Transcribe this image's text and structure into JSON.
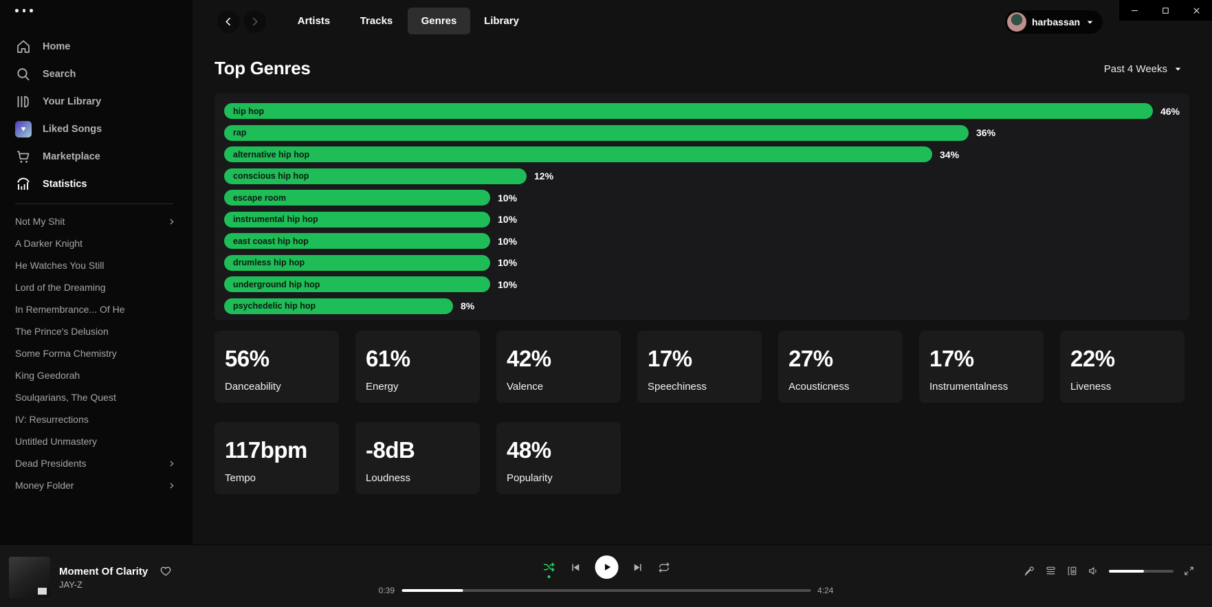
{
  "colors": {
    "accent": "#1ed760",
    "bar_green": "#1ebd57"
  },
  "sidebar": {
    "nav": [
      {
        "label": "Home",
        "icon": "home",
        "active": false
      },
      {
        "label": "Search",
        "icon": "search",
        "active": false
      },
      {
        "label": "Your Library",
        "icon": "library",
        "active": false
      },
      {
        "label": "Liked Songs",
        "icon": "liked",
        "active": false
      },
      {
        "label": "Marketplace",
        "icon": "cart",
        "active": false
      },
      {
        "label": "Statistics",
        "icon": "stats",
        "active": true
      }
    ],
    "playlists": [
      {
        "label": "Not My Shit",
        "folder": true
      },
      {
        "label": "A Darker Knight",
        "folder": false
      },
      {
        "label": "He Watches You Still",
        "folder": false
      },
      {
        "label": "Lord of the Dreaming",
        "folder": false
      },
      {
        "label": "In Remembrance... Of He",
        "folder": false
      },
      {
        "label": "The Prince's Delusion",
        "folder": false
      },
      {
        "label": "Some Forma Chemistry",
        "folder": false
      },
      {
        "label": "King Geedorah",
        "folder": false
      },
      {
        "label": "Soulqarians, The Quest",
        "folder": false
      },
      {
        "label": "IV: Resurrections",
        "folder": false
      },
      {
        "label": "Untitled Unmastery",
        "folder": false
      },
      {
        "label": "Dead Presidents",
        "folder": true
      },
      {
        "label": "Money Folder",
        "folder": true
      }
    ]
  },
  "topbar": {
    "tabs": [
      {
        "label": "Artists",
        "active": false
      },
      {
        "label": "Tracks",
        "active": false
      },
      {
        "label": "Genres",
        "active": true
      },
      {
        "label": "Library",
        "active": false
      }
    ],
    "user_name": "harbassan"
  },
  "header": {
    "title": "Top Genres",
    "time_range": "Past 4 Weeks"
  },
  "chart_data": {
    "type": "bar",
    "orientation": "horizontal",
    "title": "Top Genres",
    "categories": [
      "hip hop",
      "rap",
      "alternative hip hop",
      "conscious hip hop",
      "escape room",
      "instrumental hip hop",
      "east coast hip hop",
      "drumless hip hop",
      "underground hip hop",
      "psychedelic hip hop"
    ],
    "values": [
      46,
      36,
      34,
      12,
      10,
      10,
      10,
      10,
      10,
      8
    ],
    "value_labels": [
      "46%",
      "36%",
      "34%",
      "12%",
      "10%",
      "10%",
      "10%",
      "10%",
      "10%",
      "8%"
    ],
    "unit": "%",
    "bar_color": "#1ebd57",
    "grid": false,
    "legend": false
  },
  "stats": [
    {
      "value": "56%",
      "label": "Danceability"
    },
    {
      "value": "61%",
      "label": "Energy"
    },
    {
      "value": "42%",
      "label": "Valence"
    },
    {
      "value": "17%",
      "label": "Speechiness"
    },
    {
      "value": "27%",
      "label": "Acousticness"
    },
    {
      "value": "17%",
      "label": "Instrumentalness"
    },
    {
      "value": "22%",
      "label": "Liveness"
    },
    {
      "value": "117bpm",
      "label": "Tempo"
    },
    {
      "value": "-8dB",
      "label": "Loudness"
    },
    {
      "value": "48%",
      "label": "Popularity"
    }
  ],
  "player": {
    "track": "Moment Of Clarity",
    "artist": "JAY-Z",
    "elapsed": "0:39",
    "duration": "4:24",
    "progress_pct": 15,
    "volume_pct": 54,
    "shuffle_active": true
  }
}
